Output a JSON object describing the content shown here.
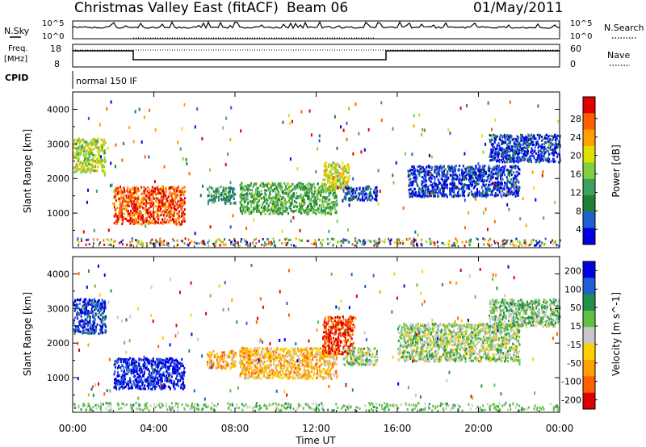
{
  "header": {
    "station": "Christmas Valley East (fitACF)",
    "beam": "Beam 06",
    "date": "01/May/2011"
  },
  "panels": {
    "nsky_label": "N.Sky",
    "nsky_ticks": [
      "10^5",
      "10^0"
    ],
    "nsearch_label": "N.Search",
    "nsearch_ticks": [
      "10^5",
      "10^0"
    ],
    "freq_label_1": "Freq.",
    "freq_label_2": "[MHz]",
    "freq_ticks": [
      "18",
      "8"
    ],
    "nave_label": "Nave",
    "nave_ticks": [
      "60",
      "0"
    ],
    "cpid_label": "CPID",
    "cpid_text": "normal 150 IF"
  },
  "colors": {
    "power_scale": [
      "#0000e0",
      "#2060d0",
      "#208030",
      "#40a060",
      "#80d040",
      "#e0e000",
      "#ffa000",
      "#ff6000",
      "#e00000"
    ],
    "velocity_scale": [
      "#0000e0",
      "#2060d0",
      "#209050",
      "#60c040",
      "#c8c8c8",
      "#ffd000",
      "#ffa000",
      "#ff6000",
      "#e00000"
    ]
  },
  "chart_data": [
    {
      "type": "heatmap",
      "name": "power",
      "ylabel": "Slant Range [km]",
      "yticks": [
        "1000",
        "2000",
        "3000",
        "4000"
      ],
      "ylim": [
        0,
        4500
      ],
      "colorbar_label": "Power [dB]",
      "colorbar_ticks": [
        "4",
        "8",
        "12",
        "16",
        "20",
        "24",
        "28"
      ],
      "scatter_regions": [
        {
          "x0": 0.0,
          "x1": 1.6,
          "y0": 2200,
          "y1": 3200,
          "level": 0.55
        },
        {
          "x0": 2.0,
          "x1": 5.5,
          "y0": 700,
          "y1": 1800,
          "level": 0.85
        },
        {
          "x0": 6.6,
          "x1": 8.0,
          "y0": 1300,
          "y1": 1800,
          "level": 0.3
        },
        {
          "x0": 8.2,
          "x1": 13.0,
          "y0": 1000,
          "y1": 1900,
          "level": 0.4
        },
        {
          "x0": 12.3,
          "x1": 13.6,
          "y0": 1700,
          "y1": 2500,
          "level": 0.6
        },
        {
          "x0": 13.3,
          "x1": 15.0,
          "y0": 1400,
          "y1": 1800,
          "level": 0.15
        },
        {
          "x0": 16.5,
          "x1": 22.0,
          "y0": 1500,
          "y1": 2400,
          "level": 0.1
        },
        {
          "x0": 20.5,
          "x1": 24.0,
          "y0": 2500,
          "y1": 3300,
          "level": 0.1
        }
      ]
    },
    {
      "type": "heatmap",
      "name": "velocity",
      "ylabel": "Slant Range [km]",
      "yticks": [
        "1000",
        "2000",
        "3000",
        "4000"
      ],
      "ylim": [
        0,
        4500
      ],
      "xlabel": "Time UT",
      "xticks": [
        "00:00",
        "04:00",
        "08:00",
        "12:00",
        "16:00",
        "20:00",
        "00:00"
      ],
      "xlim": [
        0,
        24
      ],
      "colorbar_label": "Velocity [m s^-1]",
      "colorbar_ticks": [
        "200",
        "100",
        "50",
        "15",
        "-15",
        "-50",
        "-100",
        "-200"
      ],
      "scatter_regions": [
        {
          "x0": 0.0,
          "x1": 1.6,
          "y0": 2300,
          "y1": 3300,
          "level": 0.1
        },
        {
          "x0": 2.0,
          "x1": 5.5,
          "y0": 700,
          "y1": 1600,
          "level": 0.05
        },
        {
          "x0": 6.6,
          "x1": 8.0,
          "y0": 1300,
          "y1": 1800,
          "level": 0.7
        },
        {
          "x0": 8.2,
          "x1": 13.0,
          "y0": 1000,
          "y1": 1900,
          "level": 0.65
        },
        {
          "x0": 12.3,
          "x1": 13.8,
          "y0": 1700,
          "y1": 2800,
          "level": 0.9
        },
        {
          "x0": 13.3,
          "x1": 15.0,
          "y0": 1400,
          "y1": 1900,
          "level": 0.45
        },
        {
          "x0": 16.0,
          "x1": 22.0,
          "y0": 1500,
          "y1": 2600,
          "level": 0.45
        },
        {
          "x0": 20.5,
          "x1": 24.0,
          "y0": 2500,
          "y1": 3300,
          "level": 0.4
        }
      ]
    }
  ]
}
